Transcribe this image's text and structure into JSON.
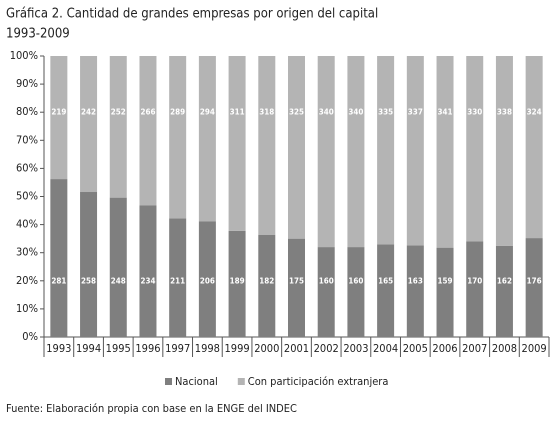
{
  "chart_data": {
    "type": "bar",
    "stack": "percent",
    "title": "Gráfica 2. Cantidad de grandes empresas por origen del capital",
    "subtitle": "1993-2009",
    "note": "Fuente: Elaboración propia con base en la ENGE del INDEC",
    "categories": [
      "1993",
      "1994",
      "1995",
      "1996",
      "1997",
      "1998",
      "1999",
      "2000",
      "2001",
      "2002",
      "2003",
      "2004",
      "2005",
      "2006",
      "2007",
      "2008",
      "2009"
    ],
    "series": [
      {
        "name": "Nacional",
        "color": "#7f7f7f",
        "values": [
          281,
          258,
          248,
          234,
          211,
          206,
          189,
          182,
          175,
          160,
          160,
          165,
          163,
          159,
          170,
          162,
          176
        ]
      },
      {
        "name": "Con participación extranjera",
        "color": "#b4b4b4",
        "values": [
          219,
          242,
          252,
          266,
          289,
          294,
          311,
          318,
          325,
          340,
          340,
          335,
          337,
          341,
          330,
          338,
          324
        ]
      }
    ],
    "ylim": [
      0,
      100
    ],
    "yticks": [
      {
        "value": 0,
        "label": "0%"
      },
      {
        "value": 10,
        "label": "10%"
      },
      {
        "value": 20,
        "label": "20%"
      },
      {
        "value": 30,
        "label": "30%"
      },
      {
        "value": 40,
        "label": "40%"
      },
      {
        "value": 50,
        "label": "50%"
      },
      {
        "value": 60,
        "label": "60%"
      },
      {
        "value": 70,
        "label": "70%"
      },
      {
        "value": 80,
        "label": "80%"
      },
      {
        "value": 90,
        "label": "90%"
      },
      {
        "value": 100,
        "label": "100%"
      }
    ],
    "legend": "bottom"
  }
}
